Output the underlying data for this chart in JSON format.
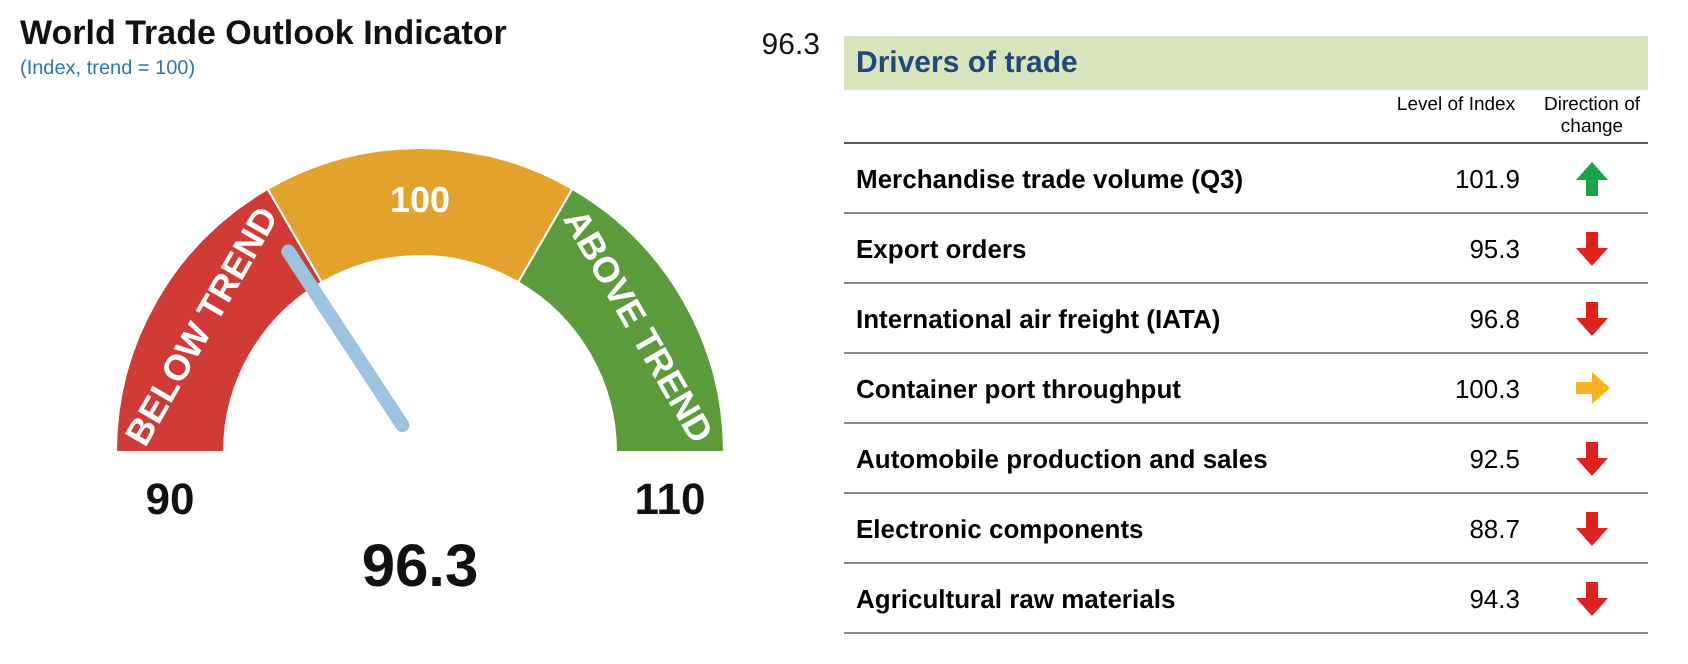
{
  "chart_data": [
    {
      "type": "donut",
      "title": "World Trade Outlook Indicator",
      "subtitle": "(Index, trend = 100)",
      "categories": [
        "BELOW TREND",
        "100",
        "ABOVE TREND"
      ],
      "values": [
        33.3,
        33.4,
        33.3
      ],
      "colors": [
        "#d13b35",
        "#e2a22c",
        "#5b9b3b"
      ],
      "needle": "BELOW TREND",
      "annotations": [
        "96.3",
        "96.3",
        "90",
        "110"
      ]
    },
    {
      "type": "other",
      "title": "Drivers of trade",
      "categories": [
        "Merchandise trade volume (Q3)",
        "Export orders",
        "International air freight (IATA)",
        "Container port throughput",
        "Automobile production and sales",
        "Electronic components",
        "Agricultural raw materials"
      ],
      "values": [
        101.9,
        95.3,
        96.8,
        100.3,
        92.5,
        88.7,
        94.3
      ],
      "annotations": [
        "Level of Index",
        "Direction of change"
      ],
      "data_labels": true
    }
  ]
}
